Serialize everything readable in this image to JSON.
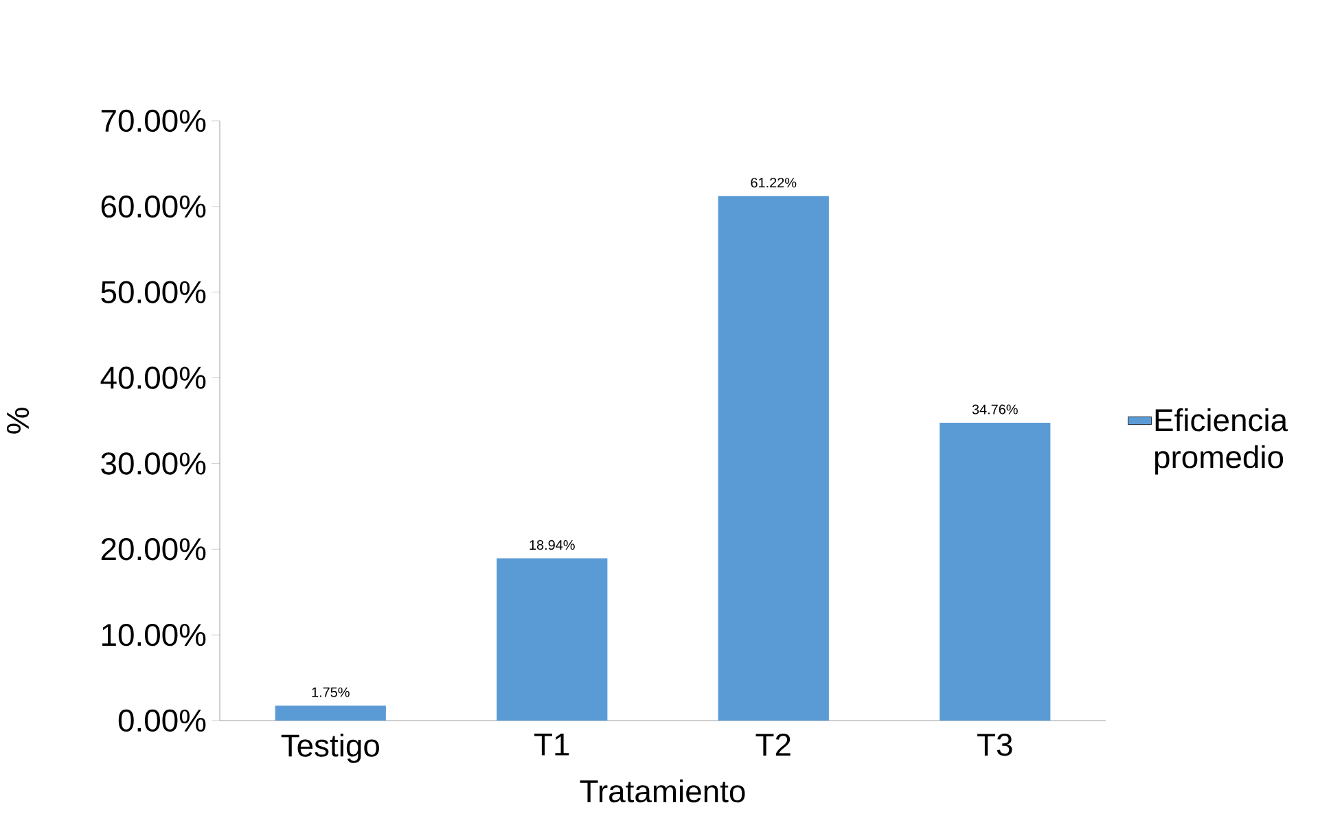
{
  "chart_data": {
    "type": "bar",
    "xlabel": "Tratamiento",
    "ylabel": "%",
    "categories": [
      "Testigo",
      "T1",
      "T2",
      "T3"
    ],
    "series": [
      {
        "name": "Eficiencia promedio",
        "color": "#5b9bd5",
        "values": [
          1.75,
          18.94,
          61.22,
          34.76
        ],
        "value_labels": [
          "1.75%",
          "18.94%",
          "61.22%",
          "34.76%"
        ]
      }
    ],
    "ylim": [
      0,
      70
    ],
    "yticks": [
      {
        "value": 0,
        "label": "0.00%"
      },
      {
        "value": 10,
        "label": "10.00%"
      },
      {
        "value": 20,
        "label": "20.00%"
      },
      {
        "value": 30,
        "label": "30.00%"
      },
      {
        "value": 40,
        "label": "40.00%"
      },
      {
        "value": 50,
        "label": "50.00%"
      },
      {
        "value": 60,
        "label": "60.00%"
      },
      {
        "value": 70,
        "label": "70.00%"
      }
    ],
    "legend": "right",
    "grid": false
  }
}
